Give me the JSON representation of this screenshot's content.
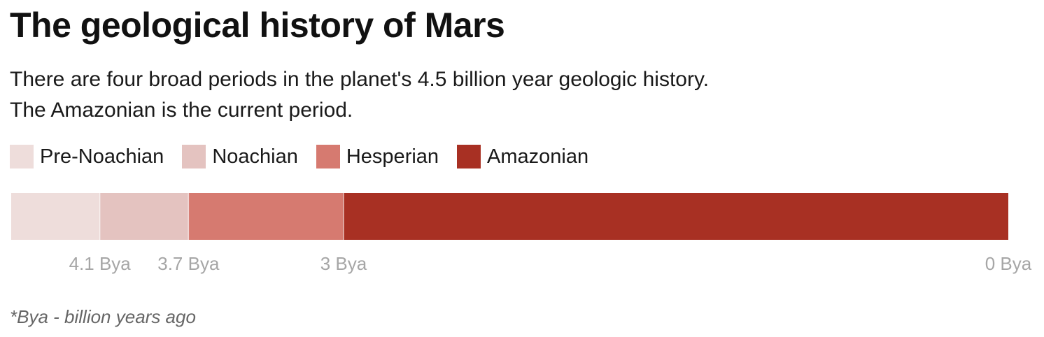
{
  "title": "The geological history of Mars",
  "subtitle_lines": [
    "There are four broad periods in the planet's 4.5 billion year geologic history.",
    "The Amazonian is the current period."
  ],
  "footnote": "*Bya - billion years ago",
  "chart_data": {
    "type": "bar",
    "orientation": "horizontal-stacked-timeline",
    "axis_unit": "Bya",
    "xlim": [
      4.5,
      0
    ],
    "segments": [
      {
        "name": "Pre-Noachian",
        "start": 4.5,
        "end": 4.1,
        "color": "#eedddb"
      },
      {
        "name": "Noachian",
        "start": 4.1,
        "end": 3.7,
        "color": "#e4c3c0"
      },
      {
        "name": "Hesperian",
        "start": 3.7,
        "end": 3.0,
        "color": "#d67a70"
      },
      {
        "name": "Amazonian",
        "start": 3.0,
        "end": 0.0,
        "color": "#a83023"
      }
    ],
    "tick_labels": [
      {
        "value": 4.1,
        "label": "4.1 Bya"
      },
      {
        "value": 3.7,
        "label": "3.7 Bya"
      },
      {
        "value": 3.0,
        "label": "3 Bya"
      },
      {
        "value": 0,
        "label": "0 Bya"
      }
    ],
    "legend": [
      "Pre-Noachian",
      "Noachian",
      "Hesperian",
      "Amazonian"
    ],
    "legend_position": "top-left",
    "grid": false
  }
}
